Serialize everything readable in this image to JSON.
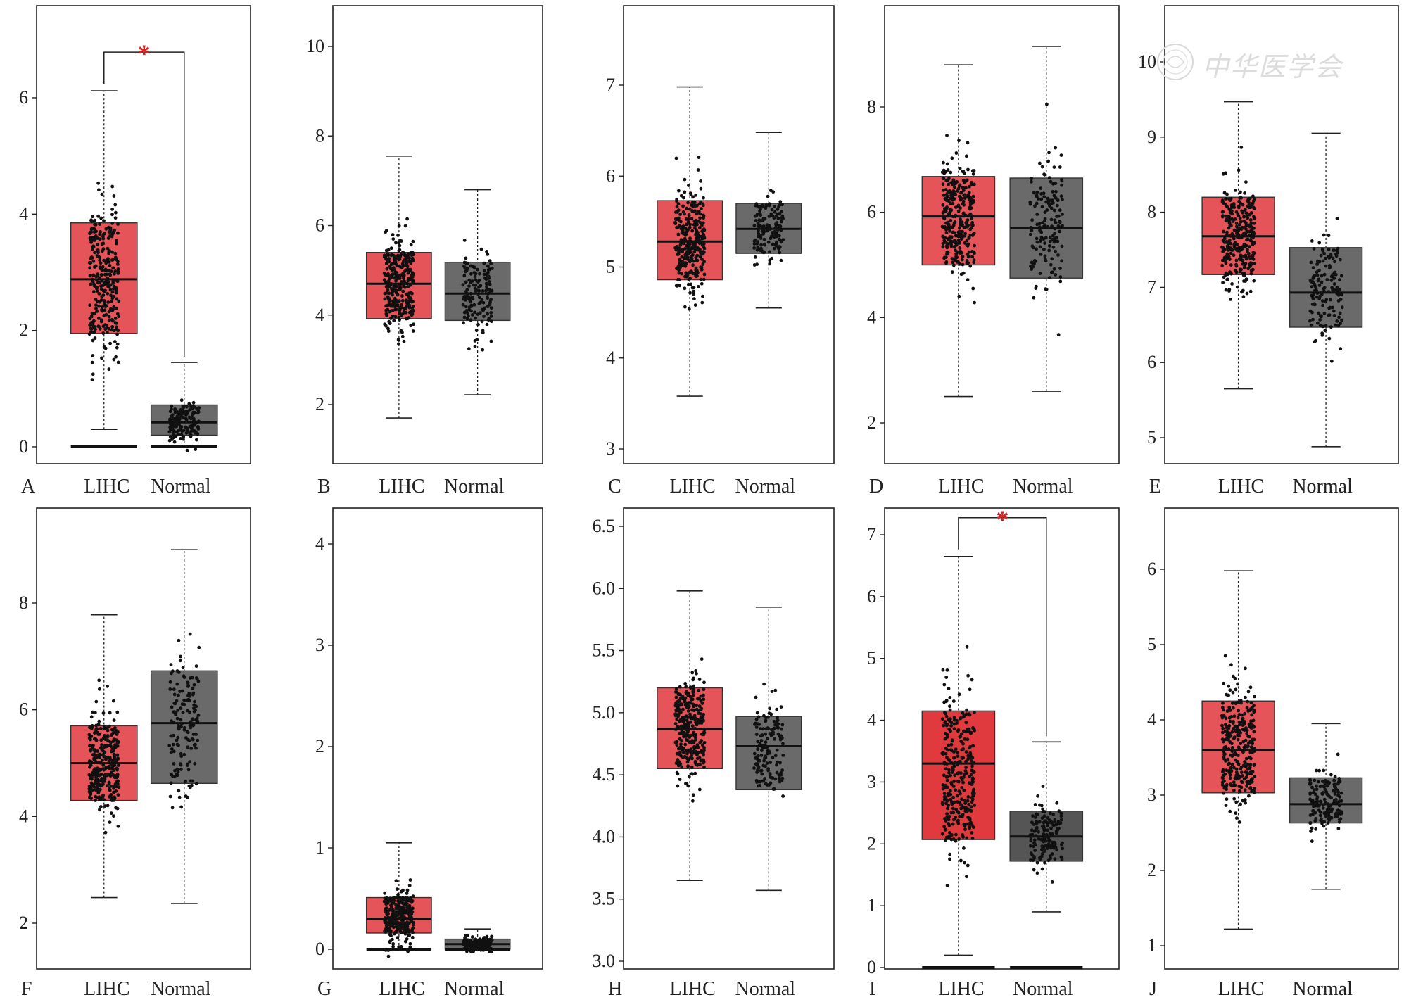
{
  "colors": {
    "tumor": "#e45458",
    "tumor_i": "#e03a3e",
    "normal": "#6a6a6a",
    "normal_dark": "#555555",
    "point": "#111111",
    "star": "#d62020",
    "frame": "#222222"
  },
  "group_labels": [
    "LIHC",
    "Normal"
  ],
  "watermark": "中华医学会",
  "chart_data": [
    {
      "type": "box",
      "panel": "A",
      "ylim": [
        -0.3,
        7.5
      ],
      "ticks": [
        0,
        2,
        4,
        6
      ],
      "categories": [
        "LIHC",
        "Normal"
      ],
      "significance": "*",
      "groups": [
        {
          "name": "LIHC",
          "whisker_low": 0.3,
          "q1": 1.95,
          "median": 2.88,
          "q3": 3.85,
          "whisker_high": 6.12,
          "zero_line": true
        },
        {
          "name": "Normal",
          "whisker_low": 0.0,
          "q1": 0.2,
          "median": 0.42,
          "q3": 0.72,
          "whisker_high": 1.45,
          "zero_line": true
        }
      ]
    },
    {
      "type": "box",
      "panel": "B",
      "ylim": [
        0.9,
        10.9
      ],
      "ticks": [
        2,
        4,
        6,
        8,
        10
      ],
      "categories": [
        "LIHC",
        "Normal"
      ],
      "groups": [
        {
          "name": "LIHC",
          "whisker_low": 1.7,
          "q1": 3.92,
          "median": 4.7,
          "q3": 5.4,
          "whisker_high": 7.55
        },
        {
          "name": "Normal",
          "whisker_low": 2.22,
          "q1": 3.88,
          "median": 4.48,
          "q3": 5.18,
          "whisker_high": 6.8
        }
      ]
    },
    {
      "type": "box",
      "panel": "C",
      "ylim": [
        2.85,
        7.85
      ],
      "ticks": [
        3,
        4,
        5,
        6,
        7
      ],
      "categories": [
        "LIHC",
        "Normal"
      ],
      "groups": [
        {
          "name": "LIHC",
          "whisker_low": 3.58,
          "q1": 4.86,
          "median": 5.28,
          "q3": 5.73,
          "whisker_high": 6.98
        },
        {
          "name": "Normal",
          "whisker_low": 4.55,
          "q1": 5.15,
          "median": 5.42,
          "q3": 5.7,
          "whisker_high": 6.48
        }
      ]
    },
    {
      "type": "box",
      "panel": "D",
      "ylim": [
        1.25,
        9.95
      ],
      "ticks": [
        2,
        4,
        6,
        8
      ],
      "categories": [
        "LIHC",
        "Normal"
      ],
      "groups": [
        {
          "name": "LIHC",
          "whisker_low": 2.5,
          "q1": 5.0,
          "median": 5.92,
          "q3": 6.68,
          "whisker_high": 8.8
        },
        {
          "name": "Normal",
          "whisker_low": 2.6,
          "q1": 4.75,
          "median": 5.7,
          "q3": 6.65,
          "whisker_high": 9.15
        }
      ]
    },
    {
      "type": "box",
      "panel": "E",
      "ylim": [
        4.75,
        10.7
      ],
      "ticks": [
        5,
        6,
        7,
        8,
        9,
        10
      ],
      "categories": [
        "LIHC",
        "Normal"
      ],
      "groups": [
        {
          "name": "LIHC",
          "whisker_low": 5.65,
          "q1": 7.17,
          "median": 7.68,
          "q3": 8.2,
          "whisker_high": 9.47
        },
        {
          "name": "Normal",
          "whisker_low": 4.88,
          "q1": 6.47,
          "median": 6.93,
          "q3": 7.53,
          "whisker_high": 9.05
        }
      ]
    },
    {
      "type": "box",
      "panel": "F",
      "ylim": [
        1.35,
        9.6
      ],
      "ticks": [
        2,
        4,
        6,
        8
      ],
      "categories": [
        "LIHC",
        "Normal"
      ],
      "groups": [
        {
          "name": "LIHC",
          "whisker_low": 2.48,
          "q1": 4.3,
          "median": 5.0,
          "q3": 5.7,
          "whisker_high": 7.78
        },
        {
          "name": "Normal",
          "whisker_low": 2.37,
          "q1": 4.62,
          "median": 5.75,
          "q3": 6.73,
          "whisker_high": 9.0
        }
      ]
    },
    {
      "type": "box",
      "panel": "G",
      "ylim": [
        -0.15,
        4.3
      ],
      "ticks": [
        0,
        1,
        2,
        3,
        4
      ],
      "categories": [
        "LIHC",
        "Normal"
      ],
      "groups": [
        {
          "name": "LIHC",
          "whisker_low": 0.0,
          "q1": 0.16,
          "median": 0.3,
          "q3": 0.51,
          "whisker_high": 1.05,
          "zero_line": true
        },
        {
          "name": "Normal",
          "whisker_low": 0.0,
          "q1": 0.0,
          "median": 0.05,
          "q3": 0.1,
          "whisker_high": 0.2,
          "zero_line": true
        }
      ]
    },
    {
      "type": "box",
      "panel": "H",
      "ylim": [
        2.98,
        6.65
      ],
      "ticks": [
        3.0,
        3.5,
        4.0,
        4.5,
        5.0,
        5.5,
        6.0,
        6.5
      ],
      "categories": [
        "LIHC",
        "Normal"
      ],
      "groups": [
        {
          "name": "LIHC",
          "whisker_low": 3.65,
          "q1": 4.55,
          "median": 4.87,
          "q3": 5.2,
          "whisker_high": 5.98
        },
        {
          "name": "Normal",
          "whisker_low": 3.57,
          "q1": 4.38,
          "median": 4.73,
          "q3": 4.97,
          "whisker_high": 5.85
        }
      ]
    },
    {
      "type": "box",
      "panel": "I",
      "ylim": [
        -0.1,
        7.3
      ],
      "ticks": [
        0,
        1,
        2,
        3,
        4,
        5,
        6,
        7
      ],
      "categories": [
        "LIHC",
        "Normal"
      ],
      "significance": "*",
      "groups": [
        {
          "name": "LIHC",
          "whisker_low": 0.2,
          "q1": 2.07,
          "median": 3.3,
          "q3": 4.15,
          "whisker_high": 6.65,
          "zero_line": true
        },
        {
          "name": "Normal",
          "whisker_low": 0.9,
          "q1": 1.72,
          "median": 2.12,
          "q3": 2.53,
          "whisker_high": 3.65,
          "zero_line": true
        }
      ]
    },
    {
      "type": "box",
      "panel": "J",
      "ylim": [
        0.72,
        6.6
      ],
      "ticks": [
        1,
        2,
        3,
        4,
        5,
        6
      ],
      "categories": [
        "LIHC",
        "Normal"
      ],
      "groups": [
        {
          "name": "LIHC",
          "whisker_low": 1.22,
          "q1": 3.03,
          "median": 3.6,
          "q3": 4.25,
          "whisker_high": 5.98
        },
        {
          "name": "Normal",
          "whisker_low": 1.75,
          "q1": 2.63,
          "median": 2.88,
          "q3": 3.23,
          "whisker_high": 3.95
        }
      ]
    }
  ]
}
